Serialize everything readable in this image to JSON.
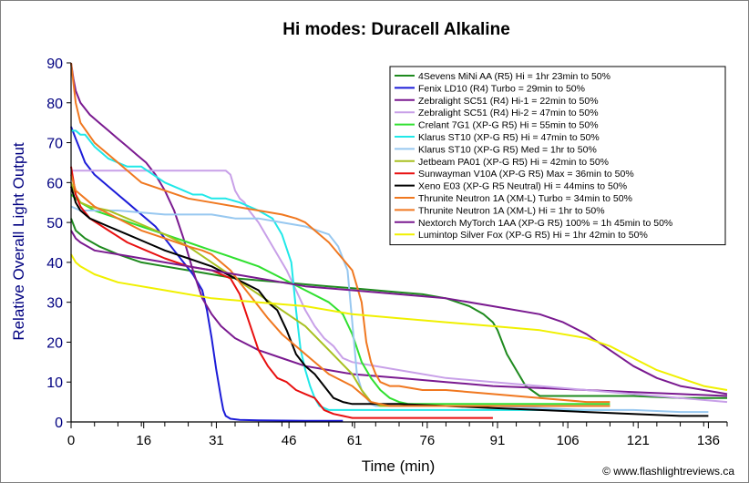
{
  "chart_data": {
    "type": "line",
    "title": "Hi modes: Duracell Alkaline",
    "xlabel": "Time (min)",
    "ylabel": "Relative Overall Light Output",
    "xlim": [
      0,
      140
    ],
    "ylim": [
      0,
      90
    ],
    "x_ticks": [
      "0",
      "16",
      "31",
      "46",
      "61",
      "76",
      "91",
      "106",
      "121",
      "136"
    ],
    "x_tick_values": [
      0,
      15.5,
      31,
      46.5,
      60.5,
      76,
      91,
      106,
      121,
      136
    ],
    "y_ticks": [
      "0",
      "10",
      "20",
      "30",
      "40",
      "50",
      "60",
      "70",
      "80",
      "90"
    ],
    "y_tick_values": [
      0,
      10,
      20,
      30,
      40,
      50,
      60,
      70,
      80,
      90
    ],
    "grid": false,
    "legend_position": "top-right",
    "credit": "© www.flashlightreviews.ca",
    "series": [
      {
        "name": "4Sevens MiNi AA (R5) Hi = 1hr 23min to 50%",
        "color": "#1e8a1e",
        "x": [
          0,
          1,
          3,
          6,
          10,
          15,
          20,
          25,
          30,
          35,
          40,
          45,
          50,
          55,
          60,
          65,
          70,
          75,
          80,
          85,
          88,
          90,
          91,
          92,
          93,
          95,
          96,
          97,
          100,
          110,
          120,
          130,
          140
        ],
        "y": [
          51,
          48,
          46,
          44,
          42,
          40,
          39,
          38,
          37,
          36,
          35.5,
          35,
          34.5,
          34,
          33.5,
          33,
          32.5,
          32,
          31,
          29,
          27,
          25,
          23,
          20,
          17,
          13,
          11,
          9,
          6.5,
          6.5,
          6.5,
          6,
          6
        ]
      },
      {
        "name": "Fenix LD10 (R4) Turbo = 29min to 50%",
        "color": "#1c1cd8",
        "x": [
          0,
          1,
          2,
          3,
          5,
          8,
          10,
          12,
          15,
          18,
          20,
          22,
          24,
          26,
          28,
          29,
          30,
          31,
          32,
          32.5,
          33,
          34,
          36,
          40,
          50,
          58
        ],
        "y": [
          74,
          71,
          68,
          65,
          62,
          59,
          57,
          55,
          52,
          49,
          46,
          43,
          40,
          37,
          33,
          28,
          21,
          13,
          6,
          3,
          1.5,
          0.8,
          0.5,
          0.4,
          0.3,
          0.3
        ]
      },
      {
        "name": "Zebralight SC51 (R4) Hi-1 = 22min to 50%",
        "color": "#7a1a90",
        "x": [
          0,
          0.5,
          1,
          2,
          4,
          6,
          8,
          10,
          12,
          14,
          16,
          18,
          20,
          22,
          24,
          26,
          28,
          30,
          32,
          35,
          40,
          45,
          50,
          55,
          60,
          70,
          80,
          90,
          100,
          110,
          120,
          130,
          140
        ],
        "y": [
          90,
          86,
          83,
          80,
          77,
          75,
          73,
          71,
          69,
          67,
          65,
          62,
          58,
          53,
          46,
          38,
          31,
          27,
          24,
          21,
          18,
          16,
          14,
          13,
          12,
          11,
          10,
          9,
          8.5,
          8,
          7.5,
          7,
          6.5
        ]
      },
      {
        "name": "Zebralight SC51 (R4) Hi-2 = 47min to 50%",
        "color": "#c8a0e8",
        "x": [
          0,
          2,
          4,
          10,
          20,
          30,
          33,
          34,
          35,
          36,
          37,
          38,
          40,
          42,
          44,
          46,
          48,
          50,
          52,
          54,
          56,
          58,
          60,
          70,
          80,
          90,
          100,
          110,
          120,
          130,
          140
        ],
        "y": [
          63,
          63,
          63,
          63,
          63,
          63,
          63,
          62,
          58,
          56,
          55,
          53,
          50,
          46,
          42,
          38,
          33,
          28,
          24,
          21,
          19,
          16,
          15,
          13,
          11,
          10,
          9,
          8,
          7,
          6,
          5
        ]
      },
      {
        "name": "Crelant 7G1 (XP-G R5) Hi = 55min to 50%",
        "color": "#30e030",
        "x": [
          0,
          2,
          5,
          10,
          15,
          20,
          25,
          30,
          35,
          40,
          45,
          50,
          55,
          58,
          60,
          62,
          64,
          66,
          68,
          70,
          72,
          75,
          80,
          90,
          100,
          110,
          115
        ],
        "y": [
          57,
          55,
          53,
          51,
          49,
          47,
          45,
          43,
          41,
          39,
          36,
          33,
          30,
          27,
          22,
          15,
          11,
          8,
          6,
          5,
          4.5,
          4.5,
          4.5,
          4.5,
          4.5,
          4.5,
          4.5
        ]
      },
      {
        "name": "Klarus ST10 (XP-G R5) Hi = 47min to 50%",
        "color": "#20e8e8",
        "x": [
          0,
          1,
          2,
          3,
          5,
          8,
          10,
          12,
          15,
          20,
          24,
          26,
          28,
          30,
          33,
          36,
          40,
          43,
          45,
          47,
          48,
          49,
          50,
          51,
          52,
          53,
          55,
          60,
          70,
          80,
          90,
          100,
          110,
          115
        ],
        "y": [
          73,
          73,
          72,
          72,
          69,
          66,
          65,
          64,
          64,
          60,
          58,
          57,
          57,
          56,
          56,
          55,
          53,
          51,
          47,
          40,
          28,
          18,
          13,
          9,
          6,
          4,
          3,
          3,
          3,
          3,
          3,
          3,
          3,
          3
        ]
      },
      {
        "name": "Klarus ST10 (XP-G R5) Med = 1hr to 50%",
        "color": "#98c8f0",
        "x": [
          0,
          2,
          5,
          10,
          20,
          30,
          35,
          40,
          45,
          50,
          55,
          57,
          59,
          60,
          61,
          62,
          63,
          64,
          65,
          70,
          80,
          90,
          100,
          110,
          120,
          130,
          136
        ],
        "y": [
          54,
          53,
          53,
          53,
          52,
          52,
          51,
          51,
          50,
          49,
          47,
          44,
          38,
          25,
          12,
          8,
          6,
          4.5,
          4,
          4,
          4,
          4,
          3.5,
          3,
          3,
          2.5,
          2.5
        ]
      },
      {
        "name": "Jetbeam PA01 (XP-G R5) Hi = 42min to 50%",
        "color": "#a8c020",
        "x": [
          0,
          1,
          2,
          4,
          8,
          12,
          16,
          20,
          25,
          30,
          35,
          40,
          45,
          50,
          55,
          60,
          62,
          64,
          66,
          68,
          70,
          80,
          90,
          100,
          110,
          115
        ],
        "y": [
          60,
          57,
          55,
          54,
          53,
          51,
          49,
          47,
          44,
          40,
          36,
          32,
          28,
          24,
          18,
          12,
          8,
          5,
          4,
          4,
          4,
          4,
          4,
          4,
          4,
          4
        ]
      },
      {
        "name": "Sunwayman V10A (XP-G R5) Max = 36min to 50%",
        "color": "#e81010",
        "x": [
          0,
          1,
          2,
          4,
          8,
          12,
          16,
          20,
          25,
          30,
          34,
          36,
          38,
          40,
          42,
          44,
          46,
          48,
          50,
          52,
          54,
          56,
          58,
          60,
          70,
          80,
          90
        ],
        "y": [
          64,
          57,
          54,
          51,
          48,
          45,
          43,
          41,
          39,
          38,
          36,
          32,
          25,
          18,
          14,
          11,
          10,
          8,
          7,
          6,
          3,
          2,
          1.5,
          1,
          1,
          1,
          1
        ]
      },
      {
        "name": "Xeno E03 (XP-G R5 Neutral) Hi = 44mins to 50%",
        "color": "#000000",
        "x": [
          0,
          1,
          2,
          4,
          8,
          12,
          16,
          20,
          25,
          30,
          35,
          40,
          42,
          44,
          46,
          48,
          50,
          52,
          54,
          56,
          58,
          60,
          70,
          80,
          90,
          100,
          110,
          120,
          130,
          136
        ],
        "y": [
          59,
          55,
          53,
          51,
          49,
          47,
          45,
          43,
          41,
          39,
          36,
          33,
          30,
          28,
          23,
          17,
          14,
          12,
          9,
          6,
          5,
          4.5,
          4.5,
          4,
          3.5,
          3,
          2.5,
          2,
          1.5,
          1.5
        ]
      },
      {
        "name": "Thrunite Neutron 1A (XM-L) Turbo = 34min to 50%",
        "color": "#f07820",
        "x": [
          0,
          1,
          2,
          3,
          5,
          10,
          15,
          20,
          25,
          28,
          30,
          32,
          34,
          36,
          38,
          40,
          42,
          45,
          50,
          55,
          60,
          62,
          64,
          66,
          68,
          70,
          80,
          90,
          100,
          110,
          115
        ],
        "y": [
          62,
          58,
          57,
          56,
          54,
          51,
          48,
          46,
          44,
          43,
          42,
          40,
          38,
          35,
          32,
          29,
          26,
          22,
          17,
          12,
          9,
          7,
          5,
          4.5,
          4,
          4,
          4,
          4,
          4,
          4,
          4
        ]
      },
      {
        "name": "Thrunite Neutron 1A (XM-L) Hi = 1hr to 50%",
        "color": "#f07820",
        "x": [
          0,
          1,
          2,
          5,
          10,
          15,
          20,
          25,
          30,
          35,
          40,
          45,
          48,
          50,
          55,
          60,
          62,
          63,
          64,
          65,
          66,
          68,
          70,
          75,
          80,
          90,
          100,
          110,
          115
        ],
        "y": [
          90,
          80,
          75,
          70,
          65,
          60,
          58,
          56,
          55,
          54,
          53,
          52,
          51,
          50,
          45,
          38,
          30,
          20,
          15,
          12,
          10,
          9,
          9,
          8,
          8,
          7,
          6,
          5,
          5
        ]
      },
      {
        "name": "Nextorch MyTorch 1AA (XP-G R5) 100% = 1h 45min to 50%",
        "color": "#7a1a90",
        "x": [
          0,
          1,
          2,
          5,
          10,
          20,
          30,
          40,
          50,
          60,
          70,
          80,
          90,
          100,
          105,
          110,
          115,
          120,
          125,
          130,
          135,
          140
        ],
        "y": [
          48,
          46,
          45,
          43,
          42,
          40,
          38,
          36,
          34,
          33,
          32,
          31,
          29,
          27,
          25,
          22,
          18,
          14,
          11,
          9,
          8,
          7
        ]
      },
      {
        "name": "Lumintop Silver Fox (XP-G R5) Hi = 1hr 42min to 50%",
        "color": "#f0f000",
        "x": [
          0,
          1,
          2,
          5,
          10,
          20,
          30,
          40,
          50,
          60,
          70,
          80,
          90,
          100,
          110,
          115,
          120,
          125,
          130,
          135,
          140
        ],
        "y": [
          42,
          40,
          39,
          37,
          35,
          33,
          31,
          30,
          29,
          27,
          26,
          25,
          24,
          23,
          21,
          19,
          16,
          13,
          11,
          9,
          8
        ]
      }
    ]
  }
}
